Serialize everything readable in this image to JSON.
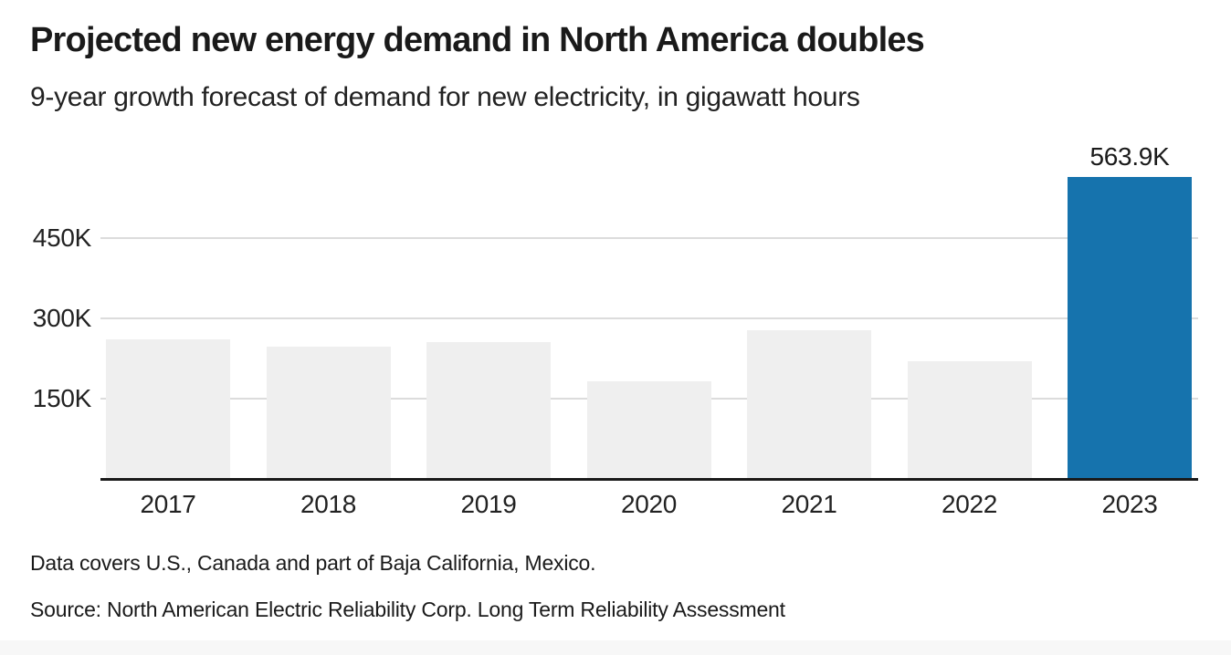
{
  "header": {
    "title": "Projected new energy demand in North America doubles",
    "subtitle": "9-year growth forecast of demand for new electricity, in gigawatt hours"
  },
  "chart_data": {
    "type": "bar",
    "title": "Projected new energy demand in North America doubles",
    "subtitle": "9-year growth forecast of demand for new electricity, in gigawatt hours",
    "unit": "thousand gigawatt hours",
    "categories": [
      "2017",
      "2018",
      "2019",
      "2020",
      "2021",
      "2022",
      "2023"
    ],
    "values": [
      260,
      248,
      255,
      182,
      277,
      220,
      563.9
    ],
    "highlight_index": 6,
    "annotation": {
      "text": "563.9K",
      "bar_index": 6
    },
    "y_axis": {
      "ticks": [
        {
          "label": "150K",
          "value": 150
        },
        {
          "label": "300K",
          "value": 300
        },
        {
          "label": "450K",
          "value": 450
        }
      ],
      "range": [
        0,
        590
      ]
    },
    "grid": "horizontal",
    "legend": "none",
    "colors": {
      "bar_default": "#efefef",
      "bar_highlight": "#1673ad",
      "gridline": "#dcdcdc",
      "axis_line": "#1a1a1a",
      "text": "#222222"
    }
  },
  "footer": {
    "note": "Data covers U.S., Canada and part of Baja California, Mexico.",
    "source": "Source: North American Electric Reliability Corp. Long Term Reliability Assessment"
  }
}
